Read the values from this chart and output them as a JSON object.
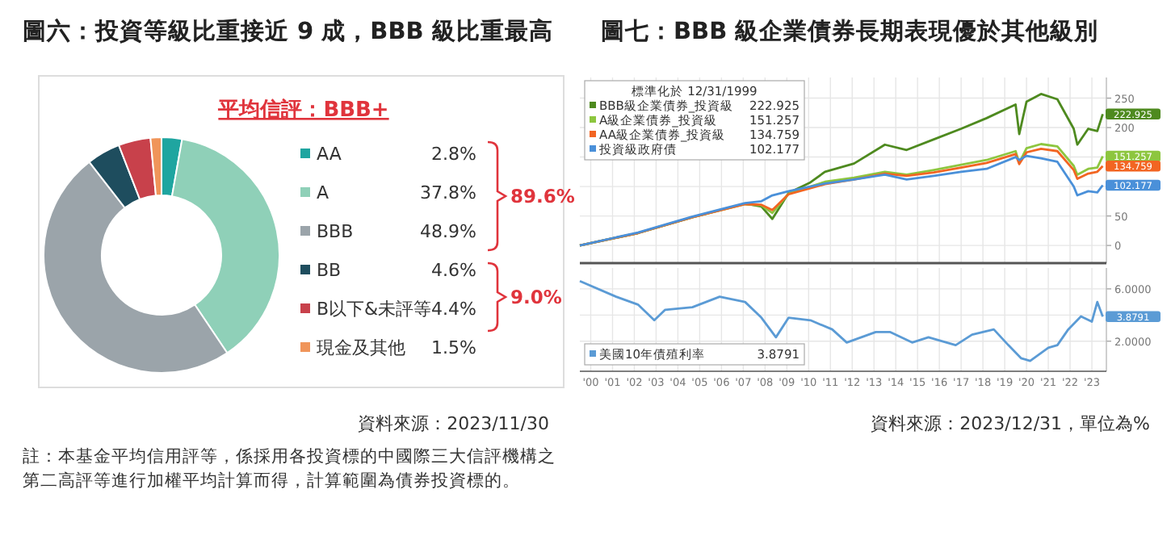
{
  "chart_data": [
    {
      "type": "donut",
      "title": "圖六：投資等級比重接近 9 成，BBB 級比重最高",
      "subtitle": "平均信評：BBB+",
      "categories": [
        "AA",
        "A",
        "BBB",
        "BB",
        "B以下&未評等",
        "現金及其他"
      ],
      "values": [
        2.8,
        37.8,
        48.9,
        4.6,
        4.4,
        1.5
      ],
      "value_labels": [
        "2.8%",
        "37.8%",
        "48.9%",
        "4.6%",
        "4.4%",
        "1.5%"
      ],
      "colors": [
        "#1fa5a0",
        "#8fd0b8",
        "#9ba4aa",
        "#1e4d5e",
        "#c8414b",
        "#f0955a"
      ],
      "legend": "right",
      "annotations": [
        "89.6%",
        "9.0%",
        "資料來源：2023/11/30",
        "註：本基金平均信用評等，係採用各投資標的中國際三大信評機構之第二高評等進行加權平均計算而得，計算範圍為債券投資標的。"
      ]
    },
    {
      "type": "line",
      "title": "圖七：BBB 級企業債券長期表現優於其他級別",
      "legend_title": "標準化於 12/31/1999",
      "x": [
        "2000-01",
        "2002-09",
        "2005-03",
        "2007-08",
        "2008-05",
        "2008-11",
        "2009-08",
        "2010-08",
        "2011-04",
        "2012-08",
        "2014-01",
        "2015-01",
        "2016-04",
        "2017-07",
        "2018-09",
        "2020-01",
        "2020-03",
        "2020-07",
        "2021-03",
        "2021-12",
        "2022-09",
        "2022-11",
        "2023-05",
        "2023-10",
        "2023-12-31"
      ],
      "series": [
        {
          "name": "BBB級企業債券_投資級",
          "color": "#4e8a1f",
          "values": [
            0,
            21,
            48,
            71,
            66,
            45,
            89,
            107,
            125,
            139,
            171,
            162,
            180,
            198,
            216,
            239,
            189,
            244,
            257,
            248,
            198,
            171,
            198,
            194,
            222.925
          ],
          "value_labels": [
            null,
            null,
            null,
            null,
            null,
            null,
            null,
            null,
            null,
            null,
            null,
            null,
            null,
            null,
            null,
            null,
            null,
            null,
            null,
            null,
            null,
            null,
            null,
            null,
            "222.925"
          ]
        },
        {
          "name": "A級企業債券_投資級",
          "color": "#8dc63f",
          "values": [
            0,
            21,
            48,
            70,
            68,
            55,
            88,
            100,
            108,
            115,
            125,
            120,
            128,
            137,
            145,
            160,
            140,
            165,
            172,
            168,
            135,
            120,
            130,
            132,
            151.257
          ],
          "value_labels": [
            null,
            null,
            null,
            null,
            null,
            null,
            null,
            null,
            null,
            null,
            null,
            null,
            null,
            null,
            null,
            null,
            null,
            null,
            null,
            null,
            null,
            null,
            null,
            null,
            "151.257"
          ]
        },
        {
          "name": "AA級企業債券_投資級",
          "color": "#f26522",
          "values": [
            0,
            21,
            48,
            70,
            69,
            60,
            87,
            97,
            104,
            112,
            122,
            118,
            124,
            132,
            140,
            155,
            138,
            158,
            164,
            160,
            128,
            113,
            122,
            125,
            134.759
          ],
          "value_labels": [
            null,
            null,
            null,
            null,
            null,
            null,
            null,
            null,
            null,
            null,
            null,
            null,
            null,
            null,
            null,
            null,
            null,
            null,
            null,
            null,
            null,
            null,
            null,
            null,
            "134.759"
          ]
        },
        {
          "name": "投資級政府債",
          "color": "#4a90d9",
          "values": [
            0,
            22,
            49,
            72,
            75,
            85,
            92,
            100,
            105,
            112,
            120,
            112,
            118,
            125,
            130,
            150,
            145,
            152,
            148,
            142,
            100,
            85,
            92,
            90,
            102.177
          ],
          "value_labels": [
            null,
            null,
            null,
            null,
            null,
            null,
            null,
            null,
            null,
            null,
            null,
            null,
            null,
            null,
            null,
            null,
            null,
            null,
            null,
            null,
            null,
            null,
            null,
            null,
            "102.177"
          ]
        }
      ],
      "xlim": [
        "2000-01",
        "2024-03"
      ],
      "ylim": [
        -30,
        285
      ],
      "yticks": [
        0,
        50,
        {
          "value": 100,
          "label": null
        },
        {
          "value": 150,
          "label": null
        },
        200,
        250
      ],
      "tick_labels": "y",
      "grid": true,
      "legend": "top left"
    },
    {
      "type": "line",
      "x": [
        "2000-01",
        "2001-09",
        "2002-09",
        "2003-06",
        "2003-12",
        "2005-03",
        "2006-06",
        "2007-08",
        "2008-05",
        "2009-01",
        "2009-08",
        "2010-08",
        "2011-08",
        "2012-04",
        "2013-08",
        "2014-04",
        "2015-04",
        "2016-01",
        "2017-04",
        "2018-01",
        "2019-01",
        "2019-09",
        "2020-04",
        "2020-09",
        "2021-07",
        "2021-12",
        "2022-06",
        "2023-01",
        "2023-07",
        "2023-10",
        "2023-12-31"
      ],
      "series": [
        {
          "name": "美國10年債殖利率",
          "color": "#5b9bd5",
          "values": [
            6.6,
            5.4,
            4.8,
            3.6,
            4.4,
            4.6,
            5.4,
            5.0,
            3.8,
            2.3,
            3.8,
            3.6,
            2.9,
            1.9,
            2.7,
            2.7,
            1.9,
            2.3,
            1.7,
            2.5,
            2.9,
            1.7,
            0.7,
            0.5,
            1.5,
            1.7,
            2.9,
            3.9,
            3.5,
            5.0,
            3.8791
          ],
          "value_labels": [
            null,
            null,
            null,
            null,
            null,
            null,
            null,
            null,
            null,
            null,
            null,
            null,
            null,
            null,
            null,
            null,
            null,
            null,
            null,
            null,
            null,
            null,
            null,
            null,
            null,
            null,
            null,
            null,
            null,
            null,
            "3.8791"
          ]
        }
      ],
      "xlim": [
        "2000-01",
        "2024-03"
      ],
      "ylim": [
        -0.3,
        7.6
      ],
      "xticks": [
        {
          "value": "2000-07",
          "label": "'00"
        },
        {
          "value": "2001-07",
          "label": "'01"
        },
        {
          "value": "2002-07",
          "label": "'02"
        },
        {
          "value": "2003-07",
          "label": "'03"
        },
        {
          "value": "2004-07",
          "label": "'04"
        },
        {
          "value": "2005-07",
          "label": "'05"
        },
        {
          "value": "2006-07",
          "label": "'06"
        },
        {
          "value": "2007-07",
          "label": "'07"
        },
        {
          "value": "2008-07",
          "label": "'08"
        },
        {
          "value": "2009-07",
          "label": "'09"
        },
        {
          "value": "2010-07",
          "label": "'10"
        },
        {
          "value": "2011-07",
          "label": "'11"
        },
        {
          "value": "2012-07",
          "label": "'12"
        },
        {
          "value": "2013-07",
          "label": "'13"
        },
        {
          "value": "2014-07",
          "label": "'14"
        },
        {
          "value": "2015-07",
          "label": "'15"
        },
        {
          "value": "2016-07",
          "label": "'16"
        },
        {
          "value": "2017-07",
          "label": "'17"
        },
        {
          "value": "2018-07",
          "label": "'18"
        },
        {
          "value": "2019-07",
          "label": "'19"
        },
        {
          "value": "2020-07",
          "label": "'20"
        },
        {
          "value": "2021-07",
          "label": "'21"
        },
        {
          "value": "2022-07",
          "label": "'22"
        },
        {
          "value": "2023-07",
          "label": "'23"
        }
      ],
      "yticks": [
        {
          "value": 6,
          "label": "6.0000"
        },
        {
          "value": 4,
          "label": null
        },
        {
          "value": 2,
          "label": "2.0000"
        }
      ],
      "grid": true,
      "legend": "bottom left",
      "annotations": [
        "資料來源：2023/12/31，單位為%"
      ]
    }
  ]
}
